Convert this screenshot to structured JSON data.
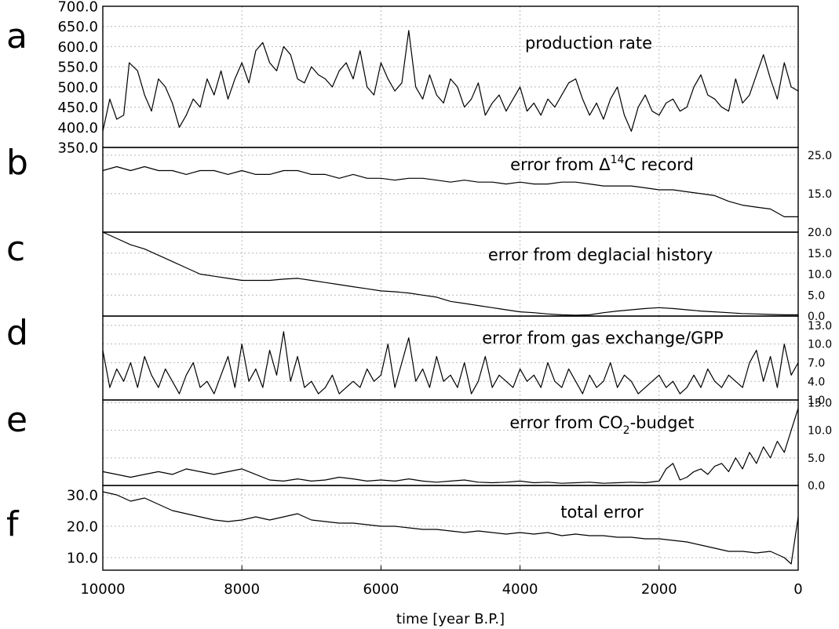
{
  "figure": {
    "xlabel": "time [year B.P.]",
    "xticks": [
      10000,
      8000,
      6000,
      4000,
      2000,
      0
    ],
    "xlim": [
      10000,
      0
    ]
  },
  "chart_data": [
    {
      "panel": "a",
      "type": "line",
      "title": "production rate",
      "y_axis_side": "left",
      "ylim": [
        350,
        700
      ],
      "yticks": [
        "350.0",
        "400.0",
        "450.0",
        "500.0",
        "550.0",
        "600.0",
        "650.0",
        "700.0"
      ],
      "x": [
        10000,
        9900,
        9800,
        9700,
        9620,
        9500,
        9400,
        9300,
        9200,
        9100,
        9000,
        8900,
        8800,
        8700,
        8600,
        8500,
        8400,
        8300,
        8200,
        8100,
        8000,
        7900,
        7800,
        7700,
        7600,
        7500,
        7400,
        7300,
        7200,
        7100,
        7000,
        6900,
        6800,
        6700,
        6600,
        6500,
        6400,
        6300,
        6200,
        6100,
        6000,
        5900,
        5800,
        5700,
        5600,
        5500,
        5400,
        5300,
        5200,
        5100,
        5000,
        4900,
        4800,
        4700,
        4600,
        4500,
        4400,
        4300,
        4200,
        4100,
        4000,
        3900,
        3800,
        3700,
        3600,
        3500,
        3400,
        3300,
        3200,
        3100,
        3000,
        2900,
        2800,
        2700,
        2600,
        2500,
        2400,
        2300,
        2200,
        2100,
        2000,
        1900,
        1800,
        1700,
        1600,
        1500,
        1400,
        1300,
        1200,
        1100,
        1000,
        900,
        800,
        700,
        600,
        500,
        400,
        300,
        200,
        100,
        0
      ],
      "values": [
        390,
        470,
        420,
        430,
        560,
        540,
        480,
        440,
        520,
        500,
        460,
        400,
        430,
        470,
        450,
        520,
        480,
        540,
        470,
        520,
        560,
        510,
        590,
        610,
        560,
        540,
        600,
        580,
        520,
        510,
        550,
        530,
        520,
        500,
        540,
        560,
        520,
        590,
        500,
        480,
        560,
        520,
        490,
        510,
        640,
        500,
        470,
        530,
        480,
        460,
        520,
        500,
        450,
        470,
        510,
        430,
        460,
        480,
        440,
        470,
        500,
        440,
        460,
        430,
        470,
        450,
        480,
        510,
        520,
        470,
        430,
        460,
        420,
        470,
        500,
        430,
        390,
        450,
        480,
        440,
        430,
        460,
        470,
        440,
        450,
        500,
        530,
        480,
        470,
        450,
        440,
        520,
        460,
        480,
        530,
        580,
        520,
        470,
        560,
        500,
        490
      ]
    },
    {
      "panel": "b",
      "type": "line",
      "title": "error from Δ14C record",
      "title_parts": [
        "error from Δ",
        "14",
        "C record"
      ],
      "y_axis_side": "right",
      "ylim": [
        5,
        27
      ],
      "yticks": [
        "15.0",
        "25.0"
      ],
      "x": [
        10000,
        9800,
        9600,
        9400,
        9200,
        9000,
        8800,
        8600,
        8400,
        8200,
        8000,
        7800,
        7600,
        7400,
        7200,
        7000,
        6800,
        6600,
        6400,
        6200,
        6000,
        5800,
        5600,
        5400,
        5200,
        5000,
        4800,
        4600,
        4400,
        4200,
        4000,
        3800,
        3600,
        3400,
        3200,
        3000,
        2800,
        2600,
        2400,
        2200,
        2000,
        1800,
        1600,
        1400,
        1200,
        1000,
        800,
        600,
        400,
        200,
        0
      ],
      "values": [
        21,
        22,
        21,
        22,
        21,
        21,
        20,
        21,
        21,
        20,
        21,
        20,
        20,
        21,
        21,
        20,
        20,
        19,
        20,
        19,
        19,
        18.5,
        19,
        19,
        18.5,
        18,
        18.5,
        18,
        18,
        17.5,
        18,
        17.5,
        17.5,
        18,
        18,
        17.5,
        17,
        17,
        17,
        16.5,
        16,
        16,
        15.5,
        15,
        14.5,
        13,
        12,
        11.5,
        11,
        9,
        9
      ]
    },
    {
      "panel": "c",
      "type": "line",
      "title": "error from deglacial history",
      "y_axis_side": "right",
      "ylim": [
        0,
        20
      ],
      "yticks": [
        "0.0",
        "5.0",
        "10.0",
        "15.0",
        "20.0"
      ],
      "x": [
        10000,
        9800,
        9600,
        9400,
        9200,
        9000,
        8800,
        8600,
        8400,
        8200,
        8000,
        7800,
        7600,
        7400,
        7200,
        7000,
        6800,
        6600,
        6400,
        6200,
        6000,
        5800,
        5600,
        5400,
        5200,
        5000,
        4800,
        4600,
        4400,
        4200,
        4000,
        3800,
        3600,
        3400,
        3200,
        3000,
        2800,
        2600,
        2400,
        2200,
        2000,
        1800,
        1600,
        1400,
        1200,
        1000,
        800,
        600,
        400,
        200,
        0
      ],
      "values": [
        20,
        18.5,
        17,
        16,
        14.5,
        13,
        11.5,
        10,
        9.5,
        9,
        8.5,
        8.5,
        8.5,
        8.8,
        9,
        8.5,
        8,
        7.5,
        7,
        6.5,
        6,
        5.8,
        5.5,
        5,
        4.5,
        3.5,
        3,
        2.5,
        2,
        1.5,
        1,
        0.8,
        0.5,
        0.3,
        0.2,
        0.3,
        0.8,
        1.2,
        1.5,
        1.8,
        2,
        1.8,
        1.5,
        1.2,
        1,
        0.8,
        0.6,
        0.5,
        0.4,
        0.3,
        0.3
      ]
    },
    {
      "panel": "d",
      "type": "line",
      "title": "error from gas exchange/GPP",
      "y_axis_side": "right",
      "ylim": [
        1,
        14.5
      ],
      "yticks": [
        "1.0",
        "4.0",
        "7.0",
        "10.0",
        "13.0"
      ],
      "x": [
        10000,
        9900,
        9800,
        9700,
        9600,
        9500,
        9400,
        9300,
        9200,
        9100,
        9000,
        8900,
        8800,
        8700,
        8600,
        8500,
        8400,
        8300,
        8200,
        8100,
        8000,
        7900,
        7800,
        7700,
        7600,
        7500,
        7400,
        7300,
        7200,
        7100,
        7000,
        6900,
        6800,
        6700,
        6600,
        6500,
        6400,
        6300,
        6200,
        6100,
        6000,
        5900,
        5800,
        5700,
        5600,
        5500,
        5400,
        5300,
        5200,
        5100,
        5000,
        4900,
        4800,
        4700,
        4600,
        4500,
        4400,
        4300,
        4200,
        4100,
        4000,
        3900,
        3800,
        3700,
        3600,
        3500,
        3400,
        3300,
        3200,
        3100,
        3000,
        2900,
        2800,
        2700,
        2600,
        2500,
        2400,
        2300,
        2200,
        2100,
        2000,
        1900,
        1800,
        1700,
        1600,
        1500,
        1400,
        1300,
        1200,
        1100,
        1000,
        900,
        800,
        700,
        600,
        500,
        400,
        300,
        200,
        100,
        0
      ],
      "values": [
        9,
        3,
        6,
        4,
        7,
        3,
        8,
        5,
        3,
        6,
        4,
        2,
        5,
        7,
        3,
        4,
        2,
        5,
        8,
        3,
        10,
        4,
        6,
        3,
        9,
        5,
        12,
        4,
        8,
        3,
        4,
        2,
        3,
        5,
        2,
        3,
        4,
        3,
        6,
        4,
        5,
        10,
        3,
        7,
        11,
        4,
        6,
        3,
        8,
        4,
        5,
        3,
        7,
        2,
        4,
        8,
        3,
        5,
        4,
        3,
        6,
        4,
        5,
        3,
        7,
        4,
        3,
        6,
        4,
        2,
        5,
        3,
        4,
        7,
        3,
        5,
        4,
        2,
        3,
        4,
        5,
        3,
        4,
        2,
        3,
        5,
        3,
        6,
        4,
        3,
        5,
        4,
        3,
        7,
        9,
        4,
        8,
        3,
        10,
        5,
        7
      ]
    },
    {
      "panel": "e",
      "type": "line",
      "title": "error from CO2-budget",
      "title_parts": [
        "error from CO",
        "2",
        "-budget"
      ],
      "y_axis_side": "right",
      "ylim": [
        0,
        15.5
      ],
      "yticks": [
        "0.0",
        "5.0",
        "10.0",
        "15.0"
      ],
      "x": [
        10000,
        9800,
        9600,
        9400,
        9200,
        9000,
        8800,
        8600,
        8400,
        8200,
        8000,
        7800,
        7600,
        7400,
        7200,
        7000,
        6800,
        6600,
        6400,
        6200,
        6000,
        5800,
        5600,
        5400,
        5200,
        5000,
        4800,
        4600,
        4400,
        4200,
        4000,
        3800,
        3600,
        3400,
        3200,
        3000,
        2800,
        2600,
        2400,
        2200,
        2000,
        1900,
        1800,
        1700,
        1600,
        1500,
        1400,
        1300,
        1200,
        1100,
        1000,
        900,
        800,
        700,
        600,
        500,
        400,
        300,
        200,
        100,
        0
      ],
      "values": [
        2.5,
        2,
        1.5,
        2,
        2.5,
        2,
        3,
        2.5,
        2,
        2.5,
        3,
        2,
        1,
        0.8,
        1.2,
        0.8,
        1,
        1.5,
        1.2,
        0.8,
        1,
        0.8,
        1.2,
        0.8,
        0.6,
        0.8,
        1,
        0.6,
        0.5,
        0.6,
        0.8,
        0.5,
        0.6,
        0.4,
        0.5,
        0.6,
        0.4,
        0.5,
        0.6,
        0.5,
        0.8,
        3,
        4,
        1,
        1.5,
        2.5,
        3,
        2,
        3.5,
        4,
        2.5,
        5,
        3,
        6,
        4,
        7,
        5,
        8,
        6,
        10,
        14
      ]
    },
    {
      "panel": "f",
      "type": "line",
      "title": "total error",
      "y_axis_side": "left",
      "ylim": [
        6,
        33
      ],
      "yticks": [
        "10.0",
        "20.0",
        "30.0"
      ],
      "x": [
        10000,
        9800,
        9600,
        9400,
        9200,
        9000,
        8800,
        8600,
        8400,
        8200,
        8000,
        7800,
        7600,
        7400,
        7200,
        7000,
        6800,
        6600,
        6400,
        6200,
        6000,
        5800,
        5600,
        5400,
        5200,
        5000,
        4800,
        4600,
        4400,
        4200,
        4000,
        3800,
        3600,
        3400,
        3200,
        3000,
        2800,
        2600,
        2400,
        2200,
        2000,
        1800,
        1600,
        1400,
        1200,
        1000,
        800,
        600,
        400,
        200,
        100,
        0
      ],
      "values": [
        31,
        30,
        28,
        29,
        27,
        25,
        24,
        23,
        22,
        21.5,
        22,
        23,
        22,
        23,
        24,
        22,
        21.5,
        21,
        21,
        20.5,
        20,
        20,
        19.5,
        19,
        19,
        18.5,
        18,
        18.5,
        18,
        17.5,
        18,
        17.5,
        18,
        17,
        17.5,
        17,
        17,
        16.5,
        16.5,
        16,
        16,
        15.5,
        15,
        14,
        13,
        12,
        12,
        11.5,
        12,
        10,
        8,
        23
      ]
    }
  ]
}
